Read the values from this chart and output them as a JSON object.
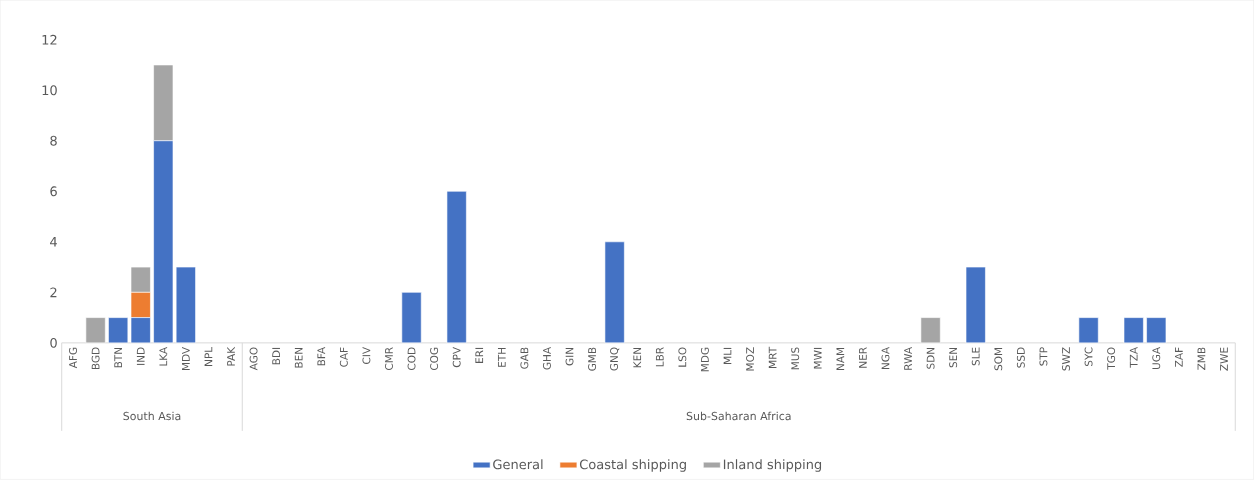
{
  "chart_data": {
    "type": "bar",
    "stacked": true,
    "legend": "bottom",
    "categories": [
      "AFG",
      "BGD",
      "BTN",
      "IND",
      "LKA",
      "MDV",
      "NPL",
      "PAK",
      "AGO",
      "BDI",
      "BEN",
      "BFA",
      "CAF",
      "CIV",
      "CMR",
      "COD",
      "COG",
      "CPV",
      "ERI",
      "ETH",
      "GAB",
      "GHA",
      "GIN",
      "GMB",
      "GNQ",
      "KEN",
      "LBR",
      "LSO",
      "MDG",
      "MLI",
      "MOZ",
      "MRT",
      "MUS",
      "MWI",
      "NAM",
      "NER",
      "NGA",
      "RWA",
      "SDN",
      "SEN",
      "SLE",
      "SOM",
      "SSD",
      "STP",
      "SWZ",
      "SYC",
      "TGO",
      "TZA",
      "UGA",
      "ZAF",
      "ZMB",
      "ZWE"
    ],
    "series": [
      {
        "name": "General",
        "color": "#4472c4",
        "values": [
          0,
          0,
          1,
          1,
          8,
          3,
          0,
          0,
          0,
          0,
          0,
          0,
          0,
          0,
          0,
          2,
          0,
          6,
          0,
          0,
          0,
          0,
          0,
          0,
          4,
          0,
          0,
          0,
          0,
          0,
          0,
          0,
          0,
          0,
          0,
          0,
          0,
          0,
          0,
          0,
          3,
          0,
          0,
          0,
          0,
          1,
          0,
          1,
          1,
          0,
          0,
          0
        ]
      },
      {
        "name": "Coastal shipping",
        "color": "#ed7d31",
        "values": [
          0,
          0,
          0,
          1,
          0,
          0,
          0,
          0,
          0,
          0,
          0,
          0,
          0,
          0,
          0,
          0,
          0,
          0,
          0,
          0,
          0,
          0,
          0,
          0,
          0,
          0,
          0,
          0,
          0,
          0,
          0,
          0,
          0,
          0,
          0,
          0,
          0,
          0,
          0,
          0,
          0,
          0,
          0,
          0,
          0,
          0,
          0,
          0,
          0,
          0,
          0,
          0
        ]
      },
      {
        "name": "Inland shipping",
        "color": "#a5a5a5",
        "values": [
          0,
          1,
          0,
          1,
          3,
          0,
          0,
          0,
          0,
          0,
          0,
          0,
          0,
          0,
          0,
          0,
          0,
          0,
          0,
          0,
          0,
          0,
          0,
          0,
          0,
          0,
          0,
          0,
          0,
          0,
          0,
          0,
          0,
          0,
          0,
          0,
          0,
          0,
          1,
          0,
          0,
          0,
          0,
          0,
          0,
          0,
          0,
          0,
          0,
          0,
          0,
          0
        ]
      }
    ],
    "ylim": [
      0,
      12
    ],
    "yticks": [
      0,
      2,
      4,
      6,
      8,
      10,
      12
    ],
    "annotations": [
      "South Asia",
      "Sub-Saharan Africa"
    ]
  }
}
